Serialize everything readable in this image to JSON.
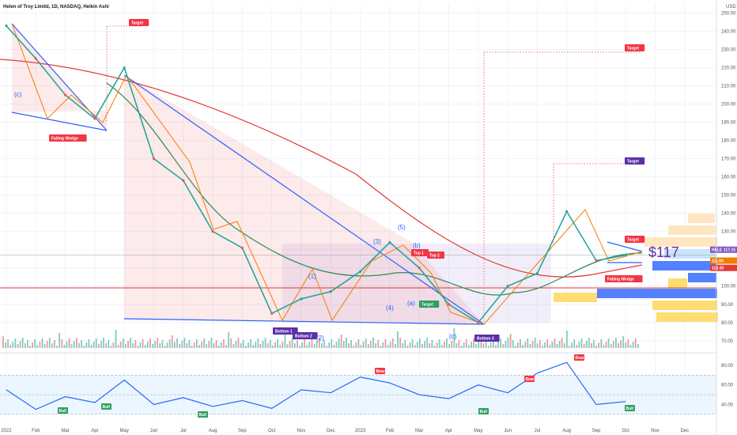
{
  "header": {
    "title": "Helen of Troy Limitd, 1D, NASDAQ, Heikin Ashi",
    "currency": "USD"
  },
  "price_tag": {
    "text": "$117"
  },
  "badges": {
    "ticker": "HELE",
    "price": "117.15",
    "line2": "111.84",
    "line3": "116.38"
  },
  "x_labels": [
    "2022",
    "Feb",
    "Mar",
    "Apr",
    "May",
    "Jun",
    "Jul",
    "Aug",
    "Sep",
    "Oct",
    "Nov",
    "Dec",
    "2023",
    "Feb",
    "Mar",
    "Apr",
    "May",
    "Jun",
    "Jul",
    "Aug",
    "Sep",
    "Oct",
    "Nov",
    "Dec"
  ],
  "wave_labels": [
    "(c)",
    "(1)",
    "(2)",
    "(3)",
    "(4)",
    "(5)",
    "(a)",
    "(b)",
    "(c)"
  ],
  "pattern_labels": [
    {
      "text": "Falling Wedge",
      "color": "#f23645"
    },
    {
      "text": "Target",
      "color": "#f23645"
    },
    {
      "text": "Bottom 1",
      "color": "#5b2fa8"
    },
    {
      "text": "Bottom 2",
      "color": "#5b2fa8"
    },
    {
      "text": "Top 1",
      "color": "#f23645"
    },
    {
      "text": "Top 2",
      "color": "#f23645"
    },
    {
      "text": "Target",
      "color": "#2e9e5e"
    },
    {
      "text": "Bottom 3",
      "color": "#5b2fa8"
    },
    {
      "text": "Target",
      "color": "#f23645"
    },
    {
      "text": "Target",
      "color": "#5b2fa8"
    },
    {
      "text": "Target",
      "color": "#f23645"
    },
    {
      "text": "Falling Wedge",
      "color": "#f23645"
    }
  ],
  "rsi_signals": [
    {
      "text": "Bull",
      "color": "#2e9e5e"
    },
    {
      "text": "Bull",
      "color": "#2e9e5e"
    },
    {
      "text": "Bull",
      "color": "#2e9e5e"
    },
    {
      "text": "Bear",
      "color": "#f23645"
    },
    {
      "text": "Bull",
      "color": "#2e9e5e"
    },
    {
      "text": "Bear",
      "color": "#f23645"
    },
    {
      "text": "Bear",
      "color": "#f23645"
    },
    {
      "text": "Bull",
      "color": "#2e9e5e"
    }
  ],
  "chart_data": [
    {
      "type": "line",
      "title": "Helen of Troy Limitd, 1D, NASDAQ, Heikin Ashi",
      "y_ticks": [
        250,
        240,
        230,
        220,
        210,
        200,
        190,
        180,
        170,
        160,
        150,
        140,
        130,
        120,
        110,
        100,
        90,
        80,
        70
      ],
      "ylim": [
        66,
        255
      ],
      "x": [
        "2022-01",
        "2022-02",
        "2022-03",
        "2022-04",
        "2022-05",
        "2022-06",
        "2022-07",
        "2022-08",
        "2022-09",
        "2022-10",
        "2022-11",
        "2022-12",
        "2023-01",
        "2023-02",
        "2023-03",
        "2023-04",
        "2023-05",
        "2023-06",
        "2023-07",
        "2023-08",
        "2023-09",
        "2023-10"
      ],
      "series": [
        {
          "values": [
            243,
            225,
            205,
            192,
            220,
            170,
            158,
            130,
            121,
            85,
            93,
            97,
            108,
            124,
            110,
            90,
            80,
            100,
            107,
            141,
            114,
            117
          ]
        }
      ],
      "colors": {
        "up": "#26a69a",
        "down": "#ef5350",
        "ma_long": "#e53935",
        "ma_mid": "#2e8b57",
        "trendline": "#2962ff",
        "zigzag": "#f57c00"
      }
    },
    {
      "type": "line",
      "title": "",
      "y_ticks": [
        80,
        60,
        40
      ],
      "ylim": [
        25,
        88
      ],
      "x": [
        "2022-01",
        "2022-02",
        "2022-03",
        "2022-04",
        "2022-05",
        "2022-06",
        "2022-07",
        "2022-08",
        "2022-09",
        "2022-10",
        "2022-11",
        "2022-12",
        "2023-01",
        "2023-02",
        "2023-03",
        "2023-04",
        "2023-05",
        "2023-06",
        "2023-07",
        "2023-08",
        "2023-09",
        "2023-10"
      ],
      "series": [
        {
          "values": [
            55,
            35,
            48,
            42,
            65,
            40,
            47,
            38,
            44,
            36,
            55,
            52,
            68,
            62,
            50,
            46,
            60,
            52,
            72,
            83,
            40,
            43
          ]
        }
      ]
    }
  ]
}
